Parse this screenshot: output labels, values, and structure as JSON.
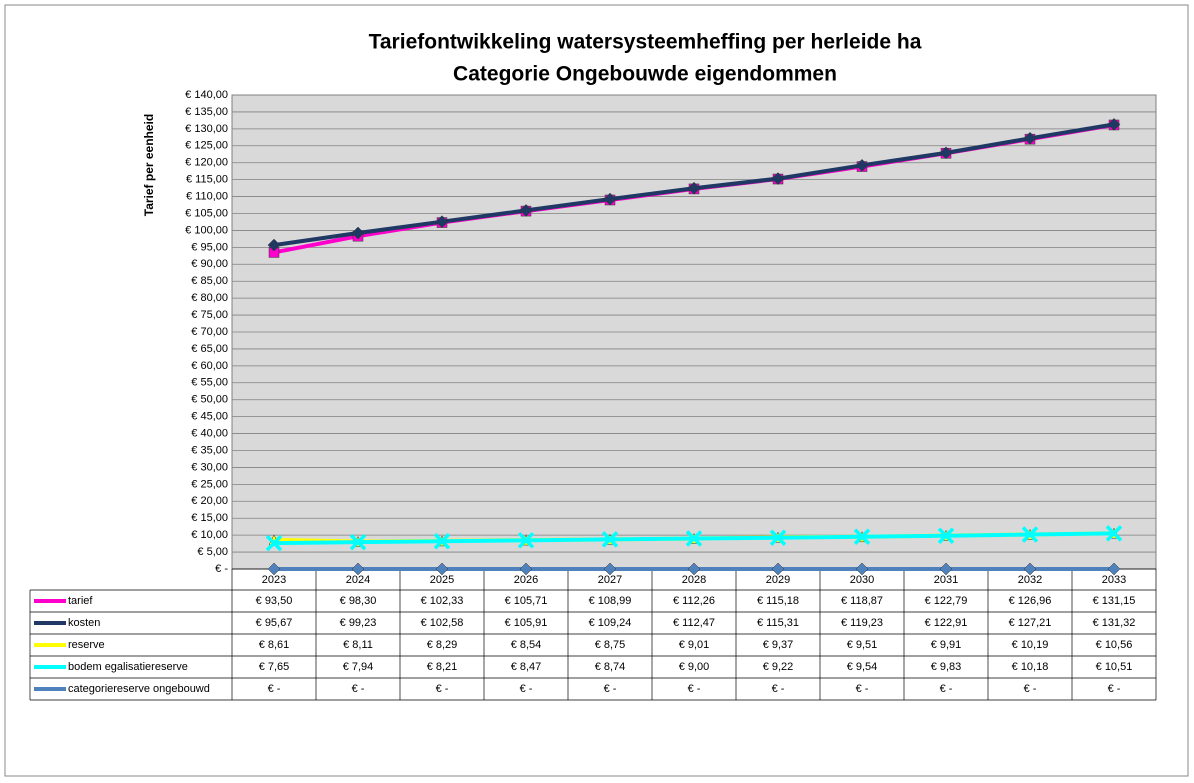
{
  "chart_data": {
    "type": "line",
    "title": [
      "Tariefontwikkeling watersysteemheffing per herleide ha",
      "Categorie Ongebouwde eigendommen"
    ],
    "y_label": "Tarief per eenheid",
    "categories": [
      "2023",
      "2024",
      "2025",
      "2026",
      "2027",
      "2028",
      "2029",
      "2030",
      "2031",
      "2032",
      "2033"
    ],
    "series": [
      {
        "name": "tarief",
        "color": "#ff00cc",
        "marker": "square",
        "values": [
          93.5,
          98.3,
          102.33,
          105.71,
          108.99,
          112.26,
          115.18,
          118.87,
          122.79,
          126.96,
          131.15
        ],
        "value_labels": [
          "€ 93,50",
          "€ 98,30",
          "€ 102,33",
          "€ 105,71",
          "€ 108,99",
          "€ 112,26",
          "€ 115,18",
          "€ 118,87",
          "€ 122,79",
          "€ 126,96",
          "€ 131,15"
        ]
      },
      {
        "name": "kosten",
        "color": "#1f3864",
        "marker": "diamond",
        "values": [
          95.67,
          99.23,
          102.58,
          105.91,
          109.24,
          112.47,
          115.31,
          119.23,
          122.91,
          127.21,
          131.32
        ],
        "value_labels": [
          "€ 95,67",
          "€ 99,23",
          "€ 102,58",
          "€ 105,91",
          "€ 109,24",
          "€ 112,47",
          "€ 115,31",
          "€ 119,23",
          "€ 122,91",
          "€ 127,21",
          "€ 131,32"
        ]
      },
      {
        "name": "reserve",
        "color": "#ffff00",
        "marker": "triangle",
        "values": [
          8.61,
          8.11,
          8.29,
          8.54,
          8.75,
          9.01,
          9.37,
          9.51,
          9.91,
          10.19,
          10.56
        ],
        "value_labels": [
          "€ 8,61",
          "€ 8,11",
          "€ 8,29",
          "€ 8,54",
          "€ 8,75",
          "€ 9,01",
          "€ 9,37",
          "€ 9,51",
          "€ 9,91",
          "€ 10,19",
          "€ 10,56"
        ]
      },
      {
        "name": "bodem egalisatiereserve",
        "color": "#00ffff",
        "marker": "x",
        "values": [
          7.65,
          7.94,
          8.21,
          8.47,
          8.74,
          9.0,
          9.22,
          9.54,
          9.83,
          10.18,
          10.51
        ],
        "value_labels": [
          "€ 7,65",
          "€ 7,94",
          "€ 8,21",
          "€ 8,47",
          "€ 8,74",
          "€ 9,00",
          "€ 9,22",
          "€ 9,54",
          "€ 9,83",
          "€ 10,18",
          "€ 10,51"
        ]
      },
      {
        "name": "categoriereserve ongebouwd",
        "color": "#4f81bd",
        "marker": "diamond",
        "values": [
          0,
          0,
          0,
          0,
          0,
          0,
          0,
          0,
          0,
          0,
          0
        ],
        "value_labels": [
          "€ -",
          "€ -",
          "€ -",
          "€ -",
          "€ -",
          "€ -",
          "€ -",
          "€ -",
          "€ -",
          "€ -",
          "€ -"
        ]
      }
    ],
    "ylim": [
      0,
      140
    ],
    "yticks": [
      {
        "value": 0,
        "label": "€ -"
      },
      {
        "value": 5,
        "label": "€ 5,00"
      },
      {
        "value": 10,
        "label": "€ 10,00"
      },
      {
        "value": 15,
        "label": "€ 15,00"
      },
      {
        "value": 20,
        "label": "€ 20,00"
      },
      {
        "value": 25,
        "label": "€ 25,00"
      },
      {
        "value": 30,
        "label": "€ 30,00"
      },
      {
        "value": 35,
        "label": "€ 35,00"
      },
      {
        "value": 40,
        "label": "€ 40,00"
      },
      {
        "value": 45,
        "label": "€ 45,00"
      },
      {
        "value": 50,
        "label": "€ 50,00"
      },
      {
        "value": 55,
        "label": "€ 55,00"
      },
      {
        "value": 60,
        "label": "€ 60,00"
      },
      {
        "value": 65,
        "label": "€ 65,00"
      },
      {
        "value": 70,
        "label": "€ 70,00"
      },
      {
        "value": 75,
        "label": "€ 75,00"
      },
      {
        "value": 80,
        "label": "€ 80,00"
      },
      {
        "value": 85,
        "label": "€ 85,00"
      },
      {
        "value": 90,
        "label": "€ 90,00"
      },
      {
        "value": 95,
        "label": "€ 95,00"
      },
      {
        "value": 100,
        "label": "€ 100,00"
      },
      {
        "value": 105,
        "label": "€ 105,00"
      },
      {
        "value": 110,
        "label": "€ 110,00"
      },
      {
        "value": 115,
        "label": "€ 115,00"
      },
      {
        "value": 120,
        "label": "€ 120,00"
      },
      {
        "value": 125,
        "label": "€ 125,00"
      },
      {
        "value": 130,
        "label": "€ 130,00"
      },
      {
        "value": 135,
        "label": "€ 135,00"
      },
      {
        "value": 140,
        "label": "€ 140,00"
      }
    ],
    "grid": true,
    "plot_background": "#d9d9d9"
  }
}
